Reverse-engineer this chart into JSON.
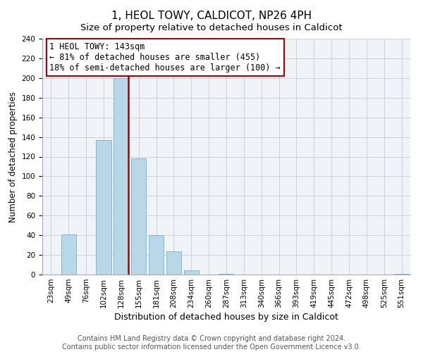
{
  "title": "1, HEOL TOWY, CALDICOT, NP26 4PH",
  "subtitle": "Size of property relative to detached houses in Caldicot",
  "xlabel": "Distribution of detached houses by size in Caldicot",
  "ylabel": "Number of detached properties",
  "bar_labels": [
    "23sqm",
    "49sqm",
    "76sqm",
    "102sqm",
    "128sqm",
    "155sqm",
    "181sqm",
    "208sqm",
    "234sqm",
    "260sqm",
    "287sqm",
    "313sqm",
    "340sqm",
    "366sqm",
    "393sqm",
    "419sqm",
    "445sqm",
    "472sqm",
    "498sqm",
    "525sqm",
    "551sqm"
  ],
  "bar_values": [
    0,
    41,
    0,
    137,
    200,
    118,
    40,
    24,
    4,
    0,
    1,
    0,
    0,
    0,
    0,
    0,
    0,
    0,
    0,
    0,
    1
  ],
  "bar_color": "#b8d8e8",
  "bar_edge_color": "#7ab0cc",
  "vline_color": "#aa0000",
  "ylim": [
    0,
    240
  ],
  "yticks": [
    0,
    20,
    40,
    60,
    80,
    100,
    120,
    140,
    160,
    180,
    200,
    220,
    240
  ],
  "annotation_title": "1 HEOL TOWY: 143sqm",
  "annotation_line1": "← 81% of detached houses are smaller (455)",
  "annotation_line2": "18% of semi-detached houses are larger (100) →",
  "annotation_box_color": "white",
  "annotation_box_edge": "#aa0000",
  "footer_line1": "Contains HM Land Registry data © Crown copyright and database right 2024.",
  "footer_line2": "Contains public sector information licensed under the Open Government Licence v3.0.",
  "title_fontsize": 11,
  "subtitle_fontsize": 9.5,
  "xlabel_fontsize": 9,
  "ylabel_fontsize": 8.5,
  "tick_fontsize": 7.5,
  "annot_fontsize": 8.5,
  "footer_fontsize": 7
}
